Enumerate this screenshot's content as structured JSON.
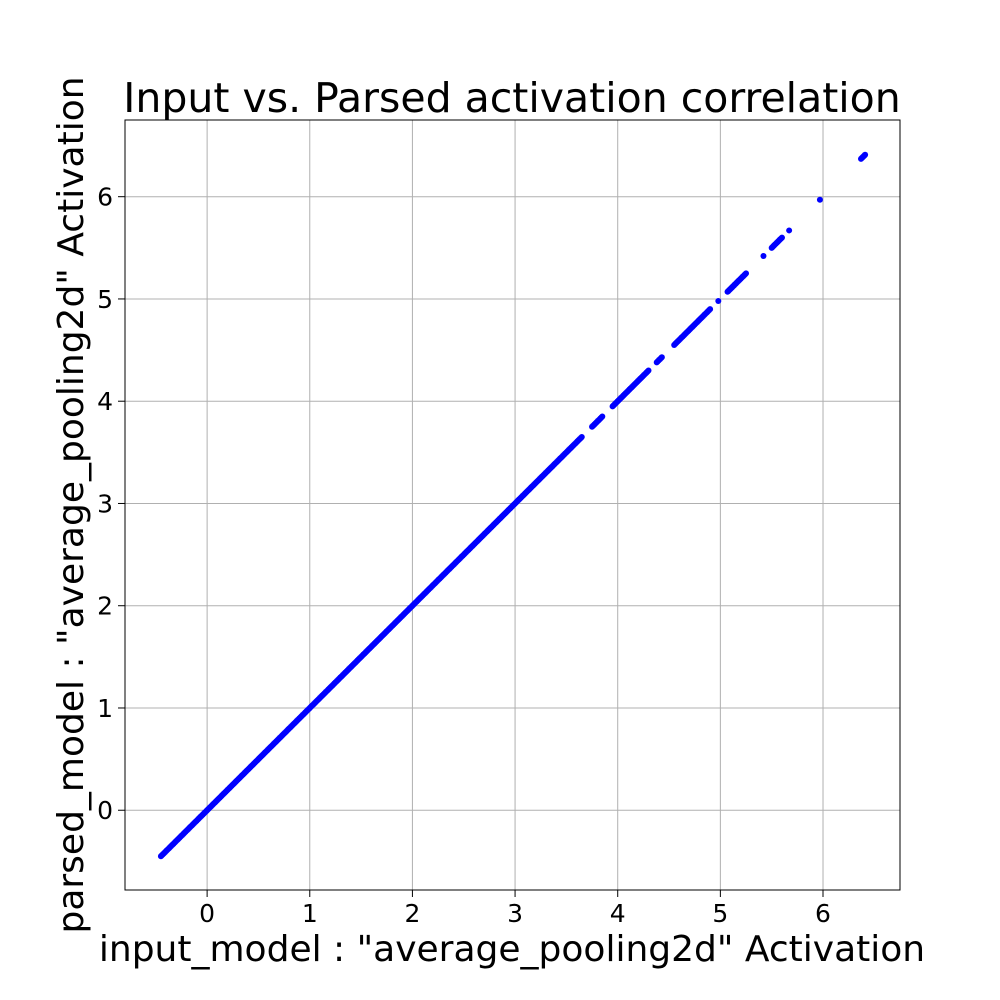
{
  "chart_data": {
    "type": "scatter",
    "title": "Input vs. Parsed activation correlation",
    "xlabel": "input_model : \"average_pooling2d\" Activation",
    "ylabel": "parsed_model : \"average_pooling2d\" Activation",
    "xlim": [
      -0.8,
      6.75
    ],
    "ylim": [
      -0.78,
      6.75
    ],
    "xticks": [
      0,
      1,
      2,
      3,
      4,
      5,
      6
    ],
    "yticks": [
      0,
      1,
      2,
      3,
      4,
      5,
      6
    ],
    "grid": true,
    "marker_color": "#0000ff",
    "series": [
      {
        "points": [
          [
            -0.45,
            -0.45
          ],
          [
            -0.4,
            -0.4
          ],
          [
            -0.35,
            -0.35
          ],
          [
            -0.3,
            -0.3
          ],
          [
            -0.25,
            -0.25
          ],
          [
            -0.2,
            -0.2
          ],
          [
            -0.15,
            -0.15
          ],
          [
            -0.1,
            -0.1
          ],
          [
            -0.05,
            -0.05
          ],
          [
            0.0,
            0.0
          ],
          [
            0.05,
            0.05
          ],
          [
            0.1,
            0.1
          ],
          [
            0.15,
            0.15
          ],
          [
            0.2,
            0.2
          ],
          [
            0.25,
            0.25
          ],
          [
            0.3,
            0.3
          ],
          [
            0.35,
            0.35
          ],
          [
            0.4,
            0.4
          ],
          [
            0.45,
            0.45
          ],
          [
            0.5,
            0.5
          ],
          [
            0.55,
            0.55
          ],
          [
            0.6,
            0.6
          ],
          [
            0.65,
            0.65
          ],
          [
            0.7,
            0.7
          ],
          [
            0.75,
            0.75
          ],
          [
            0.8,
            0.8
          ],
          [
            0.85,
            0.85
          ],
          [
            0.9,
            0.9
          ],
          [
            0.95,
            0.95
          ],
          [
            1.0,
            1.0
          ],
          [
            1.05,
            1.05
          ],
          [
            1.1,
            1.1
          ],
          [
            1.15,
            1.15
          ],
          [
            1.2,
            1.2
          ],
          [
            1.25,
            1.25
          ],
          [
            1.3,
            1.3
          ],
          [
            1.35,
            1.35
          ],
          [
            1.4,
            1.4
          ],
          [
            1.45,
            1.45
          ],
          [
            1.5,
            1.5
          ],
          [
            1.55,
            1.55
          ],
          [
            1.6,
            1.6
          ],
          [
            1.65,
            1.65
          ],
          [
            1.7,
            1.7
          ],
          [
            1.75,
            1.75
          ],
          [
            1.8,
            1.8
          ],
          [
            1.85,
            1.85
          ],
          [
            1.9,
            1.9
          ],
          [
            1.95,
            1.95
          ],
          [
            2.0,
            2.0
          ],
          [
            2.05,
            2.05
          ],
          [
            2.1,
            2.1
          ],
          [
            2.15,
            2.15
          ],
          [
            2.2,
            2.2
          ],
          [
            2.25,
            2.25
          ],
          [
            2.3,
            2.3
          ],
          [
            2.35,
            2.35
          ],
          [
            2.4,
            2.4
          ],
          [
            2.45,
            2.45
          ],
          [
            2.5,
            2.5
          ],
          [
            2.55,
            2.55
          ],
          [
            2.6,
            2.6
          ],
          [
            2.65,
            2.65
          ],
          [
            2.7,
            2.7
          ],
          [
            2.75,
            2.75
          ],
          [
            2.8,
            2.8
          ],
          [
            2.85,
            2.85
          ],
          [
            2.9,
            2.9
          ],
          [
            2.95,
            2.95
          ],
          [
            3.0,
            3.0
          ],
          [
            3.05,
            3.05
          ],
          [
            3.1,
            3.1
          ],
          [
            3.15,
            3.15
          ],
          [
            3.2,
            3.2
          ],
          [
            3.25,
            3.25
          ],
          [
            3.3,
            3.3
          ],
          [
            3.35,
            3.35
          ],
          [
            3.4,
            3.4
          ],
          [
            3.45,
            3.45
          ],
          [
            3.5,
            3.5
          ],
          [
            3.55,
            3.55
          ],
          [
            3.6,
            3.6
          ],
          [
            3.65,
            3.65
          ],
          [
            3.75,
            3.75
          ],
          [
            3.8,
            3.8
          ],
          [
            3.85,
            3.85
          ],
          [
            3.95,
            3.95
          ],
          [
            4.0,
            4.0
          ],
          [
            4.05,
            4.05
          ],
          [
            4.1,
            4.1
          ],
          [
            4.15,
            4.15
          ],
          [
            4.2,
            4.2
          ],
          [
            4.25,
            4.25
          ],
          [
            4.3,
            4.3
          ],
          [
            4.38,
            4.38
          ],
          [
            4.43,
            4.43
          ],
          [
            4.55,
            4.55
          ],
          [
            4.6,
            4.6
          ],
          [
            4.65,
            4.65
          ],
          [
            4.7,
            4.7
          ],
          [
            4.75,
            4.75
          ],
          [
            4.8,
            4.8
          ],
          [
            4.85,
            4.85
          ],
          [
            4.9,
            4.9
          ],
          [
            4.98,
            4.98
          ],
          [
            5.07,
            5.07
          ],
          [
            5.11,
            5.11
          ],
          [
            5.15,
            5.15
          ],
          [
            5.2,
            5.2
          ],
          [
            5.25,
            5.25
          ],
          [
            5.42,
            5.42
          ],
          [
            5.5,
            5.5
          ],
          [
            5.55,
            5.55
          ],
          [
            5.6,
            5.6
          ],
          [
            5.67,
            5.67
          ],
          [
            5.97,
            5.97
          ],
          [
            6.37,
            6.37
          ],
          [
            6.41,
            6.41
          ]
        ]
      }
    ]
  }
}
